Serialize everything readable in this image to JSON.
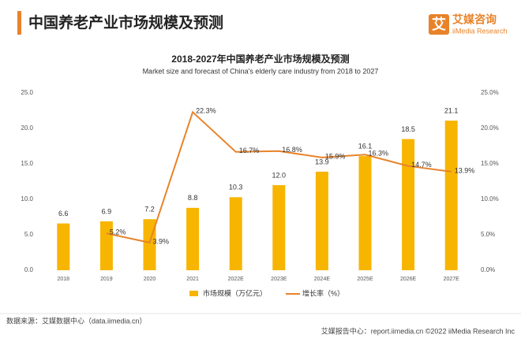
{
  "header": {
    "title": "中国养老产业市场规模及预测"
  },
  "logo": {
    "mark": "艾",
    "name": "艾媒咨询",
    "sub": "iiMedia Research"
  },
  "chart_data": {
    "type": "bar",
    "title": "2018-2027年中国养老产业市场规模及预测",
    "subtitle": "Market size and forecast of China's elderly care industry from 2018 to 2027",
    "categories": [
      "2018",
      "2019",
      "2020",
      "2021",
      "2022E",
      "2023E",
      "2024E",
      "2025E",
      "2026E",
      "2027E"
    ],
    "series": [
      {
        "name": "市场规模（万亿元）",
        "type": "bar",
        "color": "#f7b500",
        "values": [
          6.6,
          6.9,
          7.2,
          8.8,
          10.3,
          12.0,
          13.9,
          16.1,
          18.5,
          21.1
        ],
        "value_labels": [
          "6.6",
          "6.9",
          "7.2",
          "8.8",
          "10.3",
          "12.0",
          "13.9",
          "16.1",
          "18.5",
          "21.1"
        ]
      },
      {
        "name": "增长率（%）",
        "type": "line",
        "axis": "y2",
        "color": "#e8832a",
        "values": [
          null,
          5.2,
          3.9,
          22.3,
          16.7,
          16.8,
          15.9,
          16.3,
          14.7,
          13.9
        ],
        "value_labels": [
          null,
          "5.2%",
          "3.9%",
          "22.3%",
          "16.7%",
          "16.8%",
          "15.9%",
          "16.3%",
          "14.7%",
          "13.9%"
        ]
      }
    ],
    "ylim": [
      0,
      25
    ],
    "yticks": [
      {
        "value": 0,
        "label": "0.0"
      },
      {
        "value": 5,
        "label": "5.0"
      },
      {
        "value": 10,
        "label": "10.0"
      },
      {
        "value": 15,
        "label": "15.0"
      },
      {
        "value": 20,
        "label": "20.0"
      },
      {
        "value": 25,
        "label": "25.0"
      }
    ],
    "y2lim": [
      0,
      25
    ],
    "y2ticks": [
      {
        "value": 0,
        "label": "0.0%"
      },
      {
        "value": 5,
        "label": "5.0%"
      },
      {
        "value": 10,
        "label": "10.0%"
      },
      {
        "value": 15,
        "label": "15.0%"
      },
      {
        "value": 20,
        "label": "20.0%"
      },
      {
        "value": 25,
        "label": "25.0%"
      }
    ],
    "grid": false,
    "legend": "bottom"
  },
  "footer": {
    "source": "数据来源：艾媒数据中心（data.iimedia.cn）",
    "report": "艾媒报告中心：report.iimedia.cn ©2022 iiMedia Research Inc"
  }
}
